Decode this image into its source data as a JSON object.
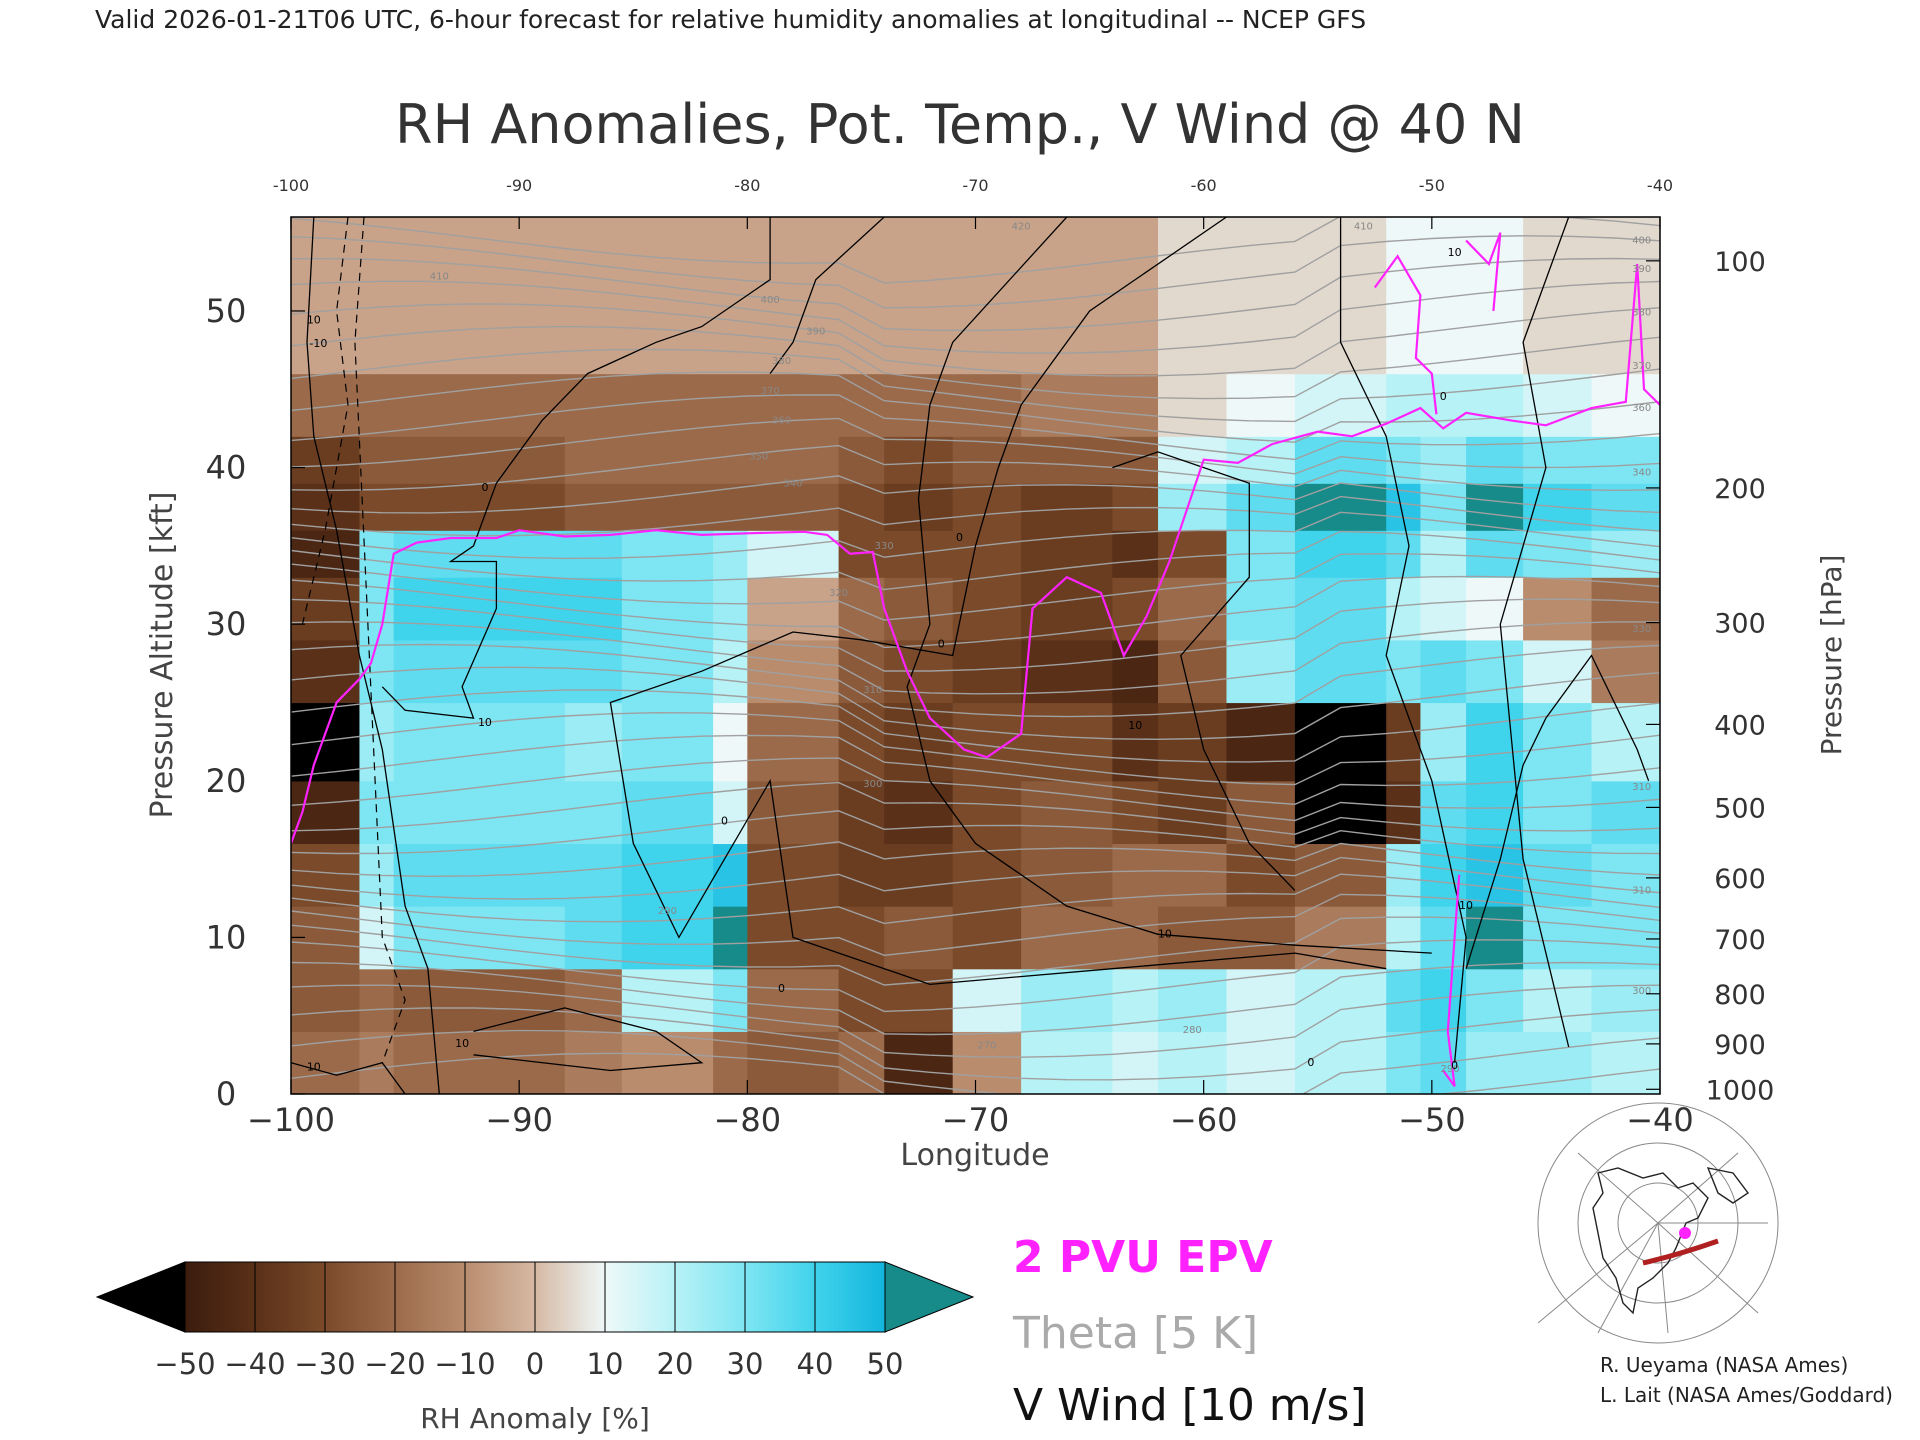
{
  "header": "Valid 2026-01-21T06 UTC, 6-hour forecast for relative humidity anomalies at longitudinal -- NCEP GFS",
  "chart_data": {
    "type": "heatmap",
    "title": "RH Anomalies, Pot. Temp., V Wind @ 40 N",
    "xlabel": "Longitude",
    "ylabel_left": "Pressure Altitude [kft]",
    "ylabel_right": "Pressure [hPa]",
    "xlim": [
      -100,
      -40
    ],
    "ylim": [
      0,
      56
    ],
    "x_ticks": [
      -100,
      -90,
      -80,
      -70,
      -60,
      -50,
      -40
    ],
    "y_ticks": [
      0,
      10,
      20,
      30,
      40,
      50
    ],
    "pressure_ticks": [
      {
        "hpa": "100",
        "kft": 53.2
      },
      {
        "hpa": "200",
        "kft": 38.7
      },
      {
        "hpa": "300",
        "kft": 30.1
      },
      {
        "hpa": "400",
        "kft": 23.6
      },
      {
        "hpa": "500",
        "kft": 18.3
      },
      {
        "hpa": "600",
        "kft": 13.8
      },
      {
        "hpa": "700",
        "kft": 9.9
      },
      {
        "hpa": "800",
        "kft": 6.4
      },
      {
        "hpa": "900",
        "kft": 3.2
      },
      {
        "hpa": "1000",
        "kft": 0.3
      }
    ],
    "x_edges": [
      -100,
      -97,
      -95.5,
      -88,
      -85.5,
      -81.5,
      -80,
      -76,
      -74,
      -71,
      -68,
      -64,
      -62,
      -59,
      -56,
      -52,
      -50.5,
      -48.5,
      -46,
      -43,
      -40
    ],
    "y_edges": [
      0,
      4,
      8,
      12,
      16,
      20,
      25,
      29,
      33,
      36,
      39,
      42,
      46,
      56
    ],
    "rh_anomaly_grid": [
      [
        -20,
        -15,
        -20,
        -15,
        -10,
        -20,
        -25,
        -20,
        -45,
        -10,
        20,
        15,
        20,
        15,
        20,
        30,
        35,
        25,
        25,
        20
      ],
      [
        -25,
        -20,
        -25,
        -20,
        20,
        30,
        -20,
        -30,
        -30,
        15,
        25,
        20,
        25,
        15,
        20,
        35,
        40,
        30,
        20,
        25
      ],
      [
        -25,
        15,
        30,
        35,
        40,
        50,
        -30,
        -30,
        -25,
        -30,
        -20,
        -20,
        -25,
        -25,
        -15,
        20,
        35,
        50,
        30,
        30
      ],
      [
        -30,
        25,
        35,
        35,
        40,
        45,
        -30,
        -35,
        -35,
        -30,
        -25,
        -20,
        -20,
        -30,
        -25,
        25,
        40,
        45,
        35,
        30
      ],
      [
        -45,
        30,
        30,
        30,
        35,
        15,
        -25,
        -35,
        -40,
        -30,
        -25,
        -30,
        -35,
        -25,
        -50,
        -40,
        35,
        40,
        30,
        35
      ],
      [
        -50,
        25,
        30,
        25,
        30,
        10,
        -20,
        -30,
        -35,
        -30,
        -30,
        -40,
        -35,
        -45,
        -50,
        -35,
        25,
        40,
        30,
        20
      ],
      [
        -40,
        30,
        35,
        35,
        30,
        20,
        -10,
        -25,
        -30,
        -35,
        -40,
        -45,
        -25,
        25,
        35,
        30,
        35,
        30,
        15,
        -15
      ],
      [
        -35,
        30,
        40,
        40,
        30,
        25,
        -5,
        -20,
        -25,
        -30,
        -35,
        -30,
        -20,
        30,
        35,
        20,
        15,
        10,
        -10,
        -20
      ],
      [
        -45,
        30,
        35,
        35,
        30,
        25,
        15,
        -30,
        -30,
        -30,
        -35,
        -40,
        -30,
        30,
        40,
        35,
        20,
        35,
        30,
        25
      ],
      [
        -40,
        -30,
        -30,
        -25,
        -25,
        -25,
        -25,
        -30,
        -35,
        -30,
        -35,
        -30,
        25,
        35,
        50,
        45,
        30,
        50,
        40,
        35
      ],
      [
        -35,
        -25,
        -25,
        -20,
        -20,
        -20,
        -20,
        -25,
        -30,
        -25,
        -25,
        -25,
        15,
        20,
        35,
        30,
        25,
        35,
        30,
        30
      ],
      [
        -20,
        -20,
        -20,
        -20,
        -20,
        -20,
        -20,
        -20,
        -20,
        -20,
        -15,
        -15,
        5,
        10,
        15,
        20,
        20,
        20,
        15,
        10
      ],
      [
        -5,
        -5,
        -5,
        -5,
        -5,
        -5,
        -5,
        -5,
        -5,
        -5,
        -5,
        -5,
        5,
        5,
        5,
        10,
        10,
        10,
        5,
        5
      ]
    ],
    "theta_contour_labels": [
      {
        "text": "410",
        "x": -93.5,
        "y": 52
      },
      {
        "text": "400",
        "x": -79,
        "y": 50.5
      },
      {
        "text": "390",
        "x": -77,
        "y": 48.5
      },
      {
        "text": "380",
        "x": -78.5,
        "y": 46.6
      },
      {
        "text": "370",
        "x": -79,
        "y": 44.7
      },
      {
        "text": "360",
        "x": -78.5,
        "y": 42.8
      },
      {
        "text": "350",
        "x": -79.5,
        "y": 40.5
      },
      {
        "text": "340",
        "x": -78,
        "y": 38.8
      },
      {
        "text": "330",
        "x": -74,
        "y": 34.8
      },
      {
        "text": "320",
        "x": -76,
        "y": 31.8
      },
      {
        "text": "310",
        "x": -74.5,
        "y": 25.6
      },
      {
        "text": "300",
        "x": -74.5,
        "y": 19.6
      },
      {
        "text": "290",
        "x": -83.5,
        "y": 11.5
      },
      {
        "text": "280",
        "x": -60.5,
        "y": 3.9
      },
      {
        "text": "270",
        "x": -69.5,
        "y": 2.9
      },
      {
        "text": "420",
        "x": -68,
        "y": 55.2
      },
      {
        "text": "410",
        "x": -53,
        "y": 55.2
      },
      {
        "text": "400",
        "x": -40.8,
        "y": 54.3
      },
      {
        "text": "390",
        "x": -40.8,
        "y": 52.5
      },
      {
        "text": "380",
        "x": -40.8,
        "y": 49.7
      },
      {
        "text": "370",
        "x": -40.8,
        "y": 46.3
      },
      {
        "text": "360",
        "x": -40.8,
        "y": 43.6
      },
      {
        "text": "340",
        "x": -40.8,
        "y": 39.5
      },
      {
        "text": "330",
        "x": -40.8,
        "y": 29.5
      },
      {
        "text": "310",
        "x": -40.8,
        "y": 19.4
      },
      {
        "text": "310",
        "x": -40.8,
        "y": 12.8
      },
      {
        "text": "300",
        "x": -40.8,
        "y": 6.4
      },
      {
        "text": "290",
        "x": -49.2,
        "y": 1.4
      }
    ],
    "wind_contour_labels": [
      {
        "text": "10",
        "x": -99,
        "y": 49.2
      },
      {
        "text": "-10",
        "x": -98.8,
        "y": 47.7
      },
      {
        "text": "0",
        "x": -91.5,
        "y": 38.5
      },
      {
        "text": "10",
        "x": -91.5,
        "y": 23.5
      },
      {
        "text": "0",
        "x": -81,
        "y": 17.2
      },
      {
        "text": "0",
        "x": -70.7,
        "y": 35.3
      },
      {
        "text": "0",
        "x": -71.5,
        "y": 28.5
      },
      {
        "text": "10",
        "x": -63,
        "y": 23.3
      },
      {
        "text": "10",
        "x": -61.7,
        "y": 10
      },
      {
        "text": "0",
        "x": -78.5,
        "y": 6.5
      },
      {
        "text": "10",
        "x": -92.5,
        "y": 3
      },
      {
        "text": "10",
        "x": -99,
        "y": 1.5
      },
      {
        "text": "10",
        "x": -48.5,
        "y": 11.8
      },
      {
        "text": "0",
        "x": -49,
        "y": 1.6
      },
      {
        "text": "0",
        "x": -55.3,
        "y": 1.8
      },
      {
        "text": "10",
        "x": -49,
        "y": 53.5
      },
      {
        "text": "0",
        "x": -49.5,
        "y": 44.3
      }
    ],
    "epv_2pvu": [
      [
        -100,
        16
      ],
      [
        -99.5,
        18
      ],
      [
        -99,
        21
      ],
      [
        -98.5,
        23
      ],
      [
        -98,
        25
      ],
      [
        -97,
        26.5
      ],
      [
        -96.5,
        27.5
      ],
      [
        -96,
        30
      ],
      [
        -95.5,
        34.5
      ],
      [
        -94.5,
        35.2
      ],
      [
        -93,
        35.5
      ],
      [
        -91,
        35.5
      ],
      [
        -90,
        36
      ],
      [
        -88,
        35.6
      ],
      [
        -86,
        35.7
      ],
      [
        -84,
        36
      ],
      [
        -82,
        35.7
      ],
      [
        -80,
        35.8
      ],
      [
        -77.5,
        35.9
      ],
      [
        -76.5,
        35.7
      ],
      [
        -75.5,
        34.5
      ],
      [
        -74.5,
        34.6
      ],
      [
        -74,
        31
      ],
      [
        -73,
        27
      ],
      [
        -72,
        24
      ],
      [
        -70.5,
        22
      ],
      [
        -69.5,
        21.5
      ],
      [
        -68,
        23
      ],
      [
        -67.5,
        31
      ],
      [
        -66,
        33
      ],
      [
        -64.5,
        32
      ],
      [
        -63.5,
        28
      ],
      [
        -62.5,
        30.5
      ],
      [
        -61.5,
        34
      ],
      [
        -60,
        40.5
      ],
      [
        -58.5,
        40.3
      ],
      [
        -57,
        41.5
      ],
      [
        -55,
        42.3
      ],
      [
        -53.5,
        42
      ],
      [
        -52,
        42.8
      ],
      [
        -50.5,
        43.8
      ],
      [
        -49.5,
        42.5
      ],
      [
        -48.5,
        43.5
      ],
      [
        -46.5,
        43
      ],
      [
        -45,
        42.7
      ],
      [
        -43,
        43.8
      ],
      [
        -41.5,
        44.2
      ],
      [
        -41,
        53
      ],
      [
        -40.7,
        45
      ],
      [
        -40,
        44
      ]
    ],
    "epv_extra": [
      [
        [
          -52.5,
          51.5
        ],
        [
          -51.5,
          53.5
        ],
        [
          -50.5,
          51
        ],
        [
          -50.7,
          47
        ],
        [
          -50,
          46
        ],
        [
          -49.8,
          43.4
        ]
      ],
      [
        [
          -48.5,
          54.5
        ],
        [
          -47.5,
          53
        ],
        [
          -47,
          55
        ],
        [
          -47.3,
          50
        ]
      ],
      [
        [
          -49,
          10
        ],
        [
          -48.8,
          14
        ],
        [
          -49.3,
          4
        ],
        [
          -49,
          0.5
        ],
        [
          -49.5,
          1.5
        ]
      ]
    ],
    "annotations": [
      "2 PVU EPV",
      "Theta [5 K]",
      "V Wind [10 m/s]"
    ],
    "colorbar": {
      "label": "RH Anomaly [%]",
      "ticks": [
        "−50",
        "−40",
        "−30",
        "−20",
        "−10",
        "0",
        "10",
        "20",
        "30",
        "40",
        "50"
      ],
      "colors": [
        "#3c1c0e",
        "#5a3018",
        "#7a4a2a",
        "#9b6a4a",
        "#b98c6e",
        "#d6b9a4",
        "#eef8f8",
        "#b7f2f6",
        "#7ee5f2",
        "#40d3ec",
        "#12b5dd"
      ],
      "under_color": "#000000",
      "over_color": "#178a8a"
    }
  },
  "credits": [
    "R. Ueyama (NASA Ames)",
    "L. Lait (NASA Ames/Goddard)"
  ],
  "colors": {
    "epv": "#ff22ff",
    "theta": "#a0a0a0",
    "wind": "#000000"
  }
}
